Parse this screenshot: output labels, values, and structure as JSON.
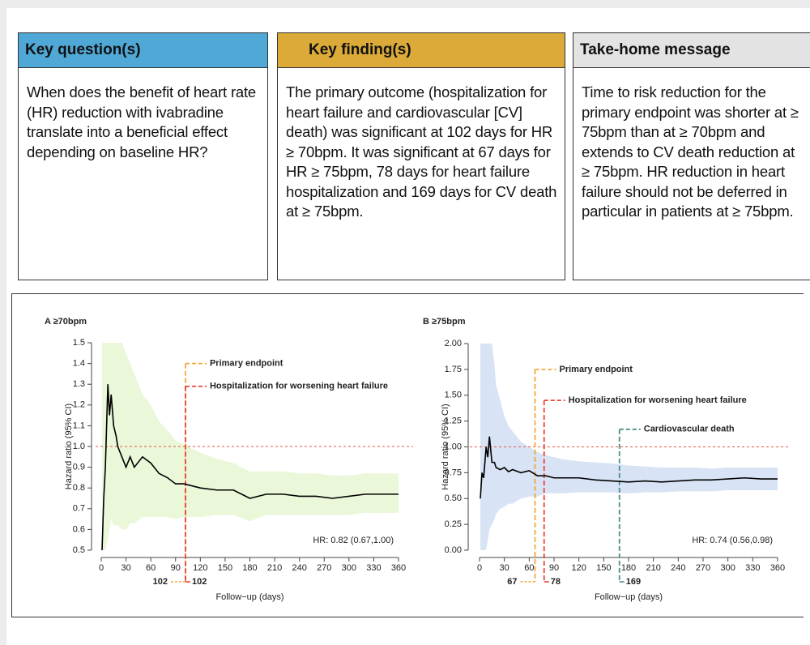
{
  "boxes": [
    {
      "header": "Key question(s)",
      "text": "When does the benefit of heart rate (HR) reduction with ivabradine translate into a beneficial effect depending on baseline HR?"
    },
    {
      "header": "Key finding(s)",
      "text": "The primary outcome (hospitalization for heart failure and cardiovascular [CV] death) was significant at 102 days for HR ≥ 70bpm. It was significant at 67 days for HR ≥ 75bpm, 78 days for heart failure hospitalization and 169 days for CV death at ≥ 75bpm."
    },
    {
      "header": "Take-home message",
      "text": "Time to risk reduction for the primary endpoint was shorter at ≥ 75bpm than at ≥ 70bpm and extends to CV death reduction at ≥ 75bpm. HR reduction in heart failure should not be deferred in particular in patients at ≥ 75bpm."
    }
  ],
  "chart_data": [
    {
      "type": "line",
      "title": "A ≥70bpm",
      "ylabel": "Hazard ratio (95% CI)",
      "xlabel": "Follow−up (days)",
      "xlim": [
        0,
        360
      ],
      "xticks": [
        0,
        30,
        60,
        90,
        120,
        150,
        180,
        210,
        240,
        270,
        300,
        330,
        360
      ],
      "ylim": [
        0.5,
        1.5
      ],
      "yticks": [
        0.5,
        0.6,
        0.7,
        0.8,
        0.9,
        {
          "value": 1,
          "label": "1.0"
        },
        1.1,
        1.2,
        1.3,
        1.4,
        1.5
      ],
      "x": [
        1,
        3,
        5,
        8,
        10,
        12,
        15,
        18,
        20,
        25,
        30,
        35,
        40,
        50,
        60,
        70,
        80,
        90,
        100,
        120,
        140,
        160,
        180,
        200,
        220,
        240,
        260,
        280,
        300,
        320,
        340,
        360
      ],
      "values": [
        0.5,
        0.75,
        0.9,
        1.3,
        1.15,
        1.25,
        1.1,
        1.05,
        1.0,
        0.95,
        0.9,
        0.95,
        0.9,
        0.95,
        0.92,
        0.87,
        0.85,
        0.82,
        0.82,
        0.8,
        0.79,
        0.79,
        0.75,
        0.77,
        0.77,
        0.76,
        0.76,
        0.75,
        0.76,
        0.77,
        0.77,
        0.77
      ],
      "upper": [
        1.5,
        1.5,
        1.5,
        1.5,
        1.5,
        1.5,
        1.5,
        1.5,
        1.5,
        1.5,
        1.45,
        1.4,
        1.35,
        1.25,
        1.2,
        1.12,
        1.08,
        1.03,
        1.01,
        0.97,
        0.94,
        0.92,
        0.88,
        0.88,
        0.88,
        0.87,
        0.87,
        0.86,
        0.86,
        0.87,
        0.87,
        0.87
      ],
      "lower": [
        0.5,
        0.5,
        0.5,
        0.55,
        0.6,
        0.65,
        0.62,
        0.62,
        0.62,
        0.6,
        0.6,
        0.63,
        0.63,
        0.66,
        0.66,
        0.66,
        0.66,
        0.65,
        0.66,
        0.66,
        0.67,
        0.67,
        0.64,
        0.67,
        0.67,
        0.67,
        0.67,
        0.67,
        0.67,
        0.68,
        0.68,
        0.68
      ],
      "color": "#000000",
      "band_color": "#eaf7d8",
      "reference": 1,
      "reference_color": "#e8553f",
      "markers": [
        {
          "label": "Primary endpoint",
          "day": 102,
          "y": 1.4,
          "color": "#f2a93b"
        },
        {
          "label": "Hospitalization for worsening heart failure",
          "day": 102,
          "y": 1.29,
          "color": "#e8453c"
        }
      ],
      "hr_text": "HR: 0.82 (0.67,1.00)"
    },
    {
      "type": "line",
      "title": "B ≥75bpm",
      "ylabel": "Hazard ratio (95% CI)",
      "xlabel": "Follow−up (days)",
      "xlim": [
        0,
        360
      ],
      "xticks": [
        0,
        30,
        60,
        90,
        120,
        150,
        180,
        210,
        240,
        270,
        300,
        330,
        360
      ],
      "ylim": [
        0,
        2
      ],
      "yticks": [
        {
          "value": 0,
          "label": "0.00"
        },
        0.25,
        {
          "value": 0.5,
          "label": "0.50"
        },
        0.75,
        {
          "value": 1,
          "label": "1.00"
        },
        1.25,
        {
          "value": 1.5,
          "label": "1.50"
        },
        1.75,
        {
          "value": 2,
          "label": "2.00"
        }
      ],
      "x": [
        1,
        3,
        5,
        8,
        10,
        12,
        15,
        18,
        20,
        25,
        30,
        35,
        40,
        50,
        60,
        70,
        80,
        90,
        100,
        120,
        140,
        160,
        180,
        200,
        220,
        240,
        260,
        280,
        300,
        320,
        340,
        360
      ],
      "values": [
        0.5,
        0.75,
        0.7,
        1.0,
        0.9,
        1.1,
        0.85,
        0.85,
        0.8,
        0.78,
        0.8,
        0.76,
        0.78,
        0.75,
        0.77,
        0.72,
        0.72,
        0.7,
        0.7,
        0.7,
        0.68,
        0.67,
        0.66,
        0.67,
        0.66,
        0.67,
        0.68,
        0.68,
        0.69,
        0.7,
        0.69,
        0.69
      ],
      "upper": [
        2,
        2,
        2,
        2,
        2,
        2,
        2,
        1.8,
        1.6,
        1.45,
        1.3,
        1.2,
        1.15,
        1.05,
        1.0,
        0.95,
        0.92,
        0.9,
        0.88,
        0.86,
        0.85,
        0.84,
        0.82,
        0.81,
        0.8,
        0.8,
        0.8,
        0.79,
        0.8,
        0.8,
        0.8,
        0.8
      ],
      "lower": [
        0,
        0,
        0,
        0,
        0.1,
        0.2,
        0.25,
        0.3,
        0.35,
        0.4,
        0.42,
        0.45,
        0.45,
        0.5,
        0.52,
        0.52,
        0.55,
        0.55,
        0.55,
        0.56,
        0.56,
        0.56,
        0.55,
        0.56,
        0.56,
        0.57,
        0.57,
        0.57,
        0.58,
        0.58,
        0.58,
        0.58
      ],
      "color": "#000000",
      "band_color": "#d8e3f5",
      "reference": 1,
      "reference_color": "#e8553f",
      "markers": [
        {
          "label": "Primary endpoint",
          "day": 67,
          "y": 1.75,
          "color": "#f2a93b"
        },
        {
          "label": "Hospitalization for worsening heart failure",
          "day": 78,
          "y": 1.45,
          "color": "#e8453c"
        },
        {
          "label": "Cardiovascular death",
          "day": 169,
          "y": 1.17,
          "color": "#4a9088"
        }
      ],
      "hr_text": "HR: 0.74 (0.56,0.98)"
    }
  ]
}
